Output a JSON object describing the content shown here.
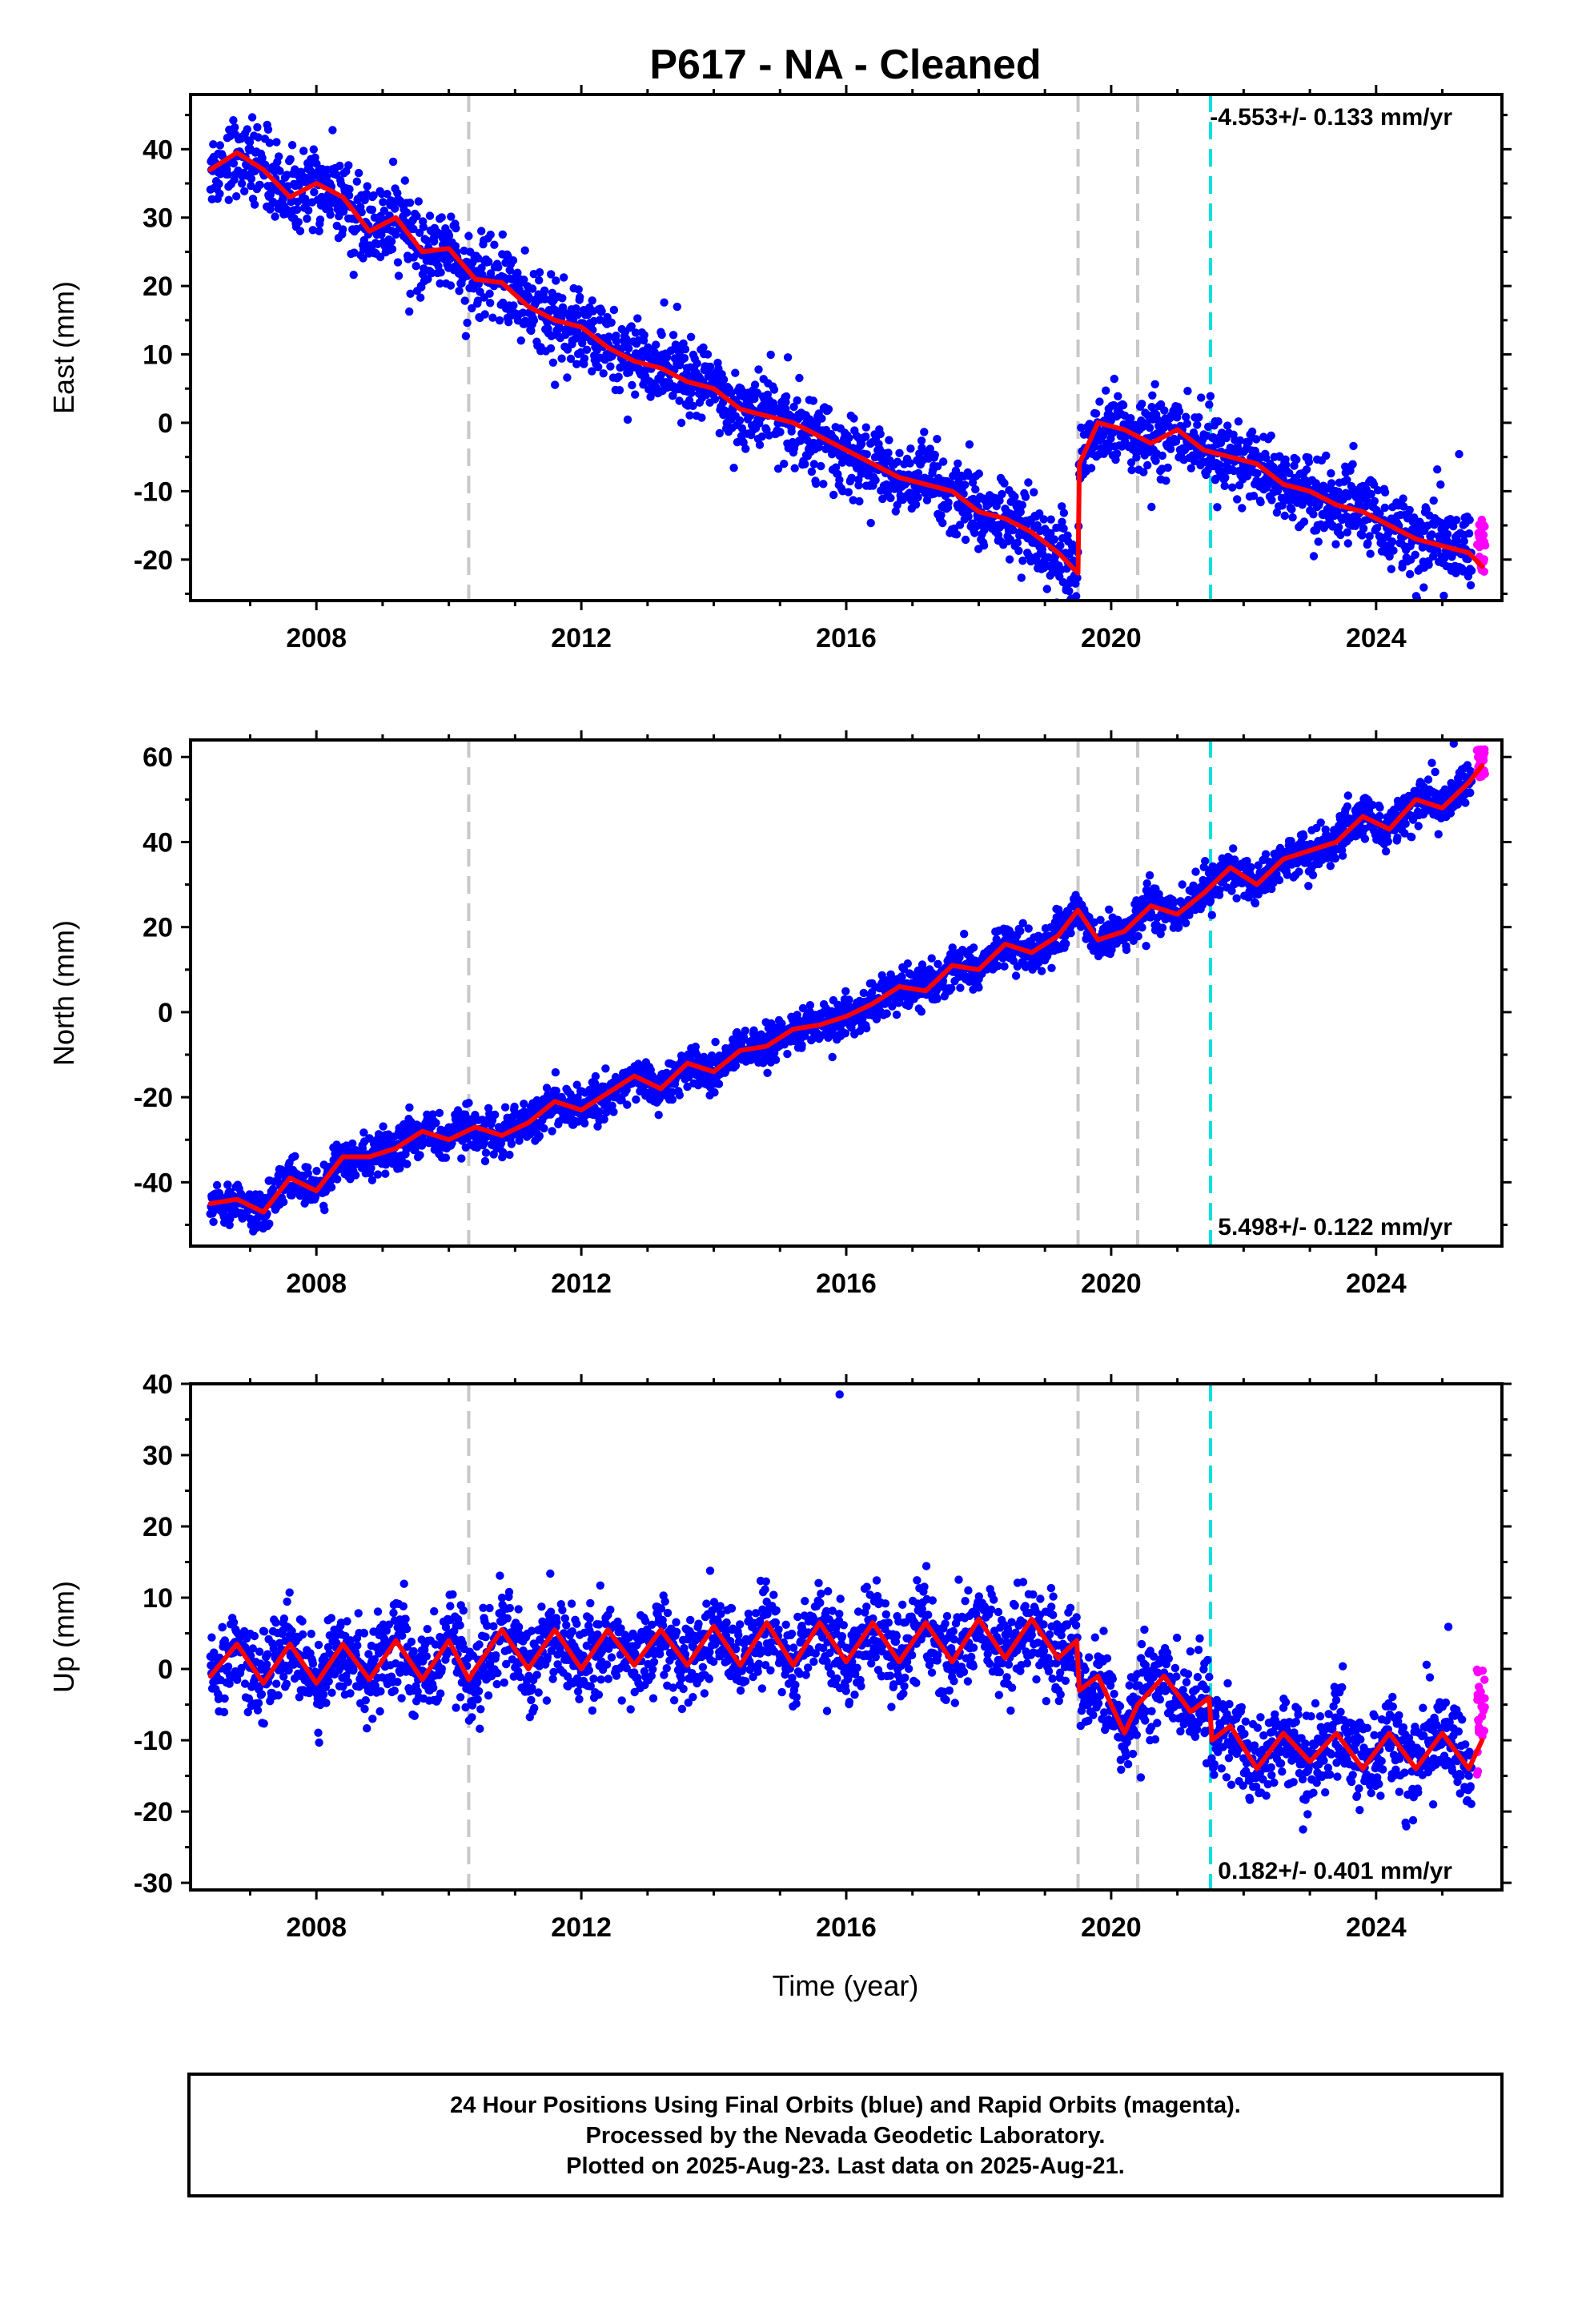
{
  "title": "P617  - NA - Cleaned",
  "xlabel": "Time (year)",
  "footer": {
    "line1": "24 Hour Positions Using Final Orbits (blue) and Rapid Orbits (magenta).",
    "line2": "Processed by the Nevada Geodetic Laboratory.",
    "line3": "Plotted on 2025-Aug-23. Last data on 2025-Aug-21."
  },
  "colors": {
    "final_orbit_points": "#0000ff",
    "rapid_orbit_points": "#ff00ff",
    "model_fit": "#ff0000",
    "event_line": "#c8c8c8",
    "eq_event_line": "#00e0e0"
  },
  "chart_data": [
    {
      "type": "scatter",
      "ylabel": "East (mm)",
      "xlim": [
        2006.1,
        2025.9
      ],
      "ylim": [
        -26,
        48
      ],
      "yticks": [
        -20,
        -10,
        0,
        10,
        20,
        30,
        40
      ],
      "xticks": [
        2008,
        2012,
        2016,
        2020,
        2024
      ],
      "grid": false,
      "annotation": "-4.553+/- 0.133 mm/yr",
      "annotation_position": "top-right",
      "event_lines": [
        2010.3,
        2019.5,
        2020.4
      ],
      "eq_event_lines": [
        2021.5
      ],
      "model_fit": {
        "x": [
          2006.4,
          2006.8,
          2007.2,
          2007.6,
          2008.0,
          2008.4,
          2008.8,
          2009.2,
          2009.6,
          2010.0,
          2010.4,
          2010.8,
          2011.2,
          2011.6,
          2012.0,
          2012.4,
          2012.8,
          2013.2,
          2013.6,
          2014.0,
          2014.4,
          2014.8,
          2015.2,
          2015.6,
          2016.0,
          2016.4,
          2016.8,
          2017.2,
          2017.6,
          2018.0,
          2018.4,
          2018.8,
          2019.2,
          2019.5,
          2019.52,
          2019.8,
          2020.2,
          2020.6,
          2021.0,
          2021.4,
          2021.8,
          2022.2,
          2022.6,
          2023.0,
          2023.4,
          2023.8,
          2024.2,
          2024.6,
          2025.0,
          2025.4,
          2025.6
        ],
        "values": [
          37,
          39.5,
          37,
          33,
          35,
          33,
          28,
          30,
          25,
          25.5,
          21,
          20.5,
          17,
          15,
          14,
          11,
          9,
          8,
          6,
          5,
          2,
          1,
          0,
          -2,
          -4,
          -6,
          -8,
          -9,
          -10,
          -13,
          -14,
          -16,
          -19,
          -22,
          -6,
          0,
          -1,
          -3,
          -1,
          -4,
          -5,
          -6,
          -9,
          -10,
          -12,
          -13,
          -15,
          -17,
          -18,
          -19,
          -21
        ]
      },
      "point_scatter_mm": 2.8,
      "rapid_orbit_x_range": [
        2025.45,
        2025.65
      ],
      "rapid_orbit_y_range": [
        -22,
        -14
      ]
    },
    {
      "type": "scatter",
      "ylabel": "North (mm)",
      "xlim": [
        2006.1,
        2025.9
      ],
      "ylim": [
        -55,
        64
      ],
      "yticks": [
        -40,
        -20,
        0,
        20,
        40,
        60
      ],
      "xticks": [
        2008,
        2012,
        2016,
        2020,
        2024
      ],
      "grid": false,
      "annotation": "5.498+/- 0.122 mm/yr",
      "annotation_position": "bottom-right",
      "event_lines": [
        2010.3,
        2019.5,
        2020.4
      ],
      "eq_event_lines": [
        2021.5
      ],
      "model_fit": {
        "x": [
          2006.4,
          2006.8,
          2007.2,
          2007.6,
          2008.0,
          2008.4,
          2008.8,
          2009.2,
          2009.6,
          2010.0,
          2010.4,
          2010.8,
          2011.2,
          2011.6,
          2012.0,
          2012.4,
          2012.8,
          2013.2,
          2013.6,
          2014.0,
          2014.4,
          2014.8,
          2015.2,
          2015.6,
          2016.0,
          2016.4,
          2016.8,
          2017.2,
          2017.6,
          2018.0,
          2018.4,
          2018.8,
          2019.2,
          2019.5,
          2019.8,
          2020.2,
          2020.6,
          2021.0,
          2021.4,
          2021.8,
          2022.2,
          2022.6,
          2023.0,
          2023.4,
          2023.8,
          2024.2,
          2024.6,
          2025.0,
          2025.4,
          2025.6
        ],
        "values": [
          -45,
          -44,
          -47,
          -39,
          -42,
          -34,
          -34,
          -32,
          -28,
          -30,
          -27,
          -29,
          -26,
          -21,
          -23,
          -19,
          -15,
          -18,
          -12,
          -14,
          -9,
          -8,
          -4,
          -3,
          -1,
          2,
          6,
          5,
          11,
          10,
          16,
          14,
          18,
          24,
          17,
          19,
          25,
          23,
          28,
          34,
          30,
          36,
          38,
          40,
          46,
          43,
          50,
          48,
          54,
          58
        ]
      },
      "point_scatter_mm": 2.5,
      "rapid_orbit_x_range": [
        2025.45,
        2025.65
      ],
      "rapid_orbit_y_range": [
        55,
        62
      ]
    },
    {
      "type": "scatter",
      "ylabel": "Up (mm)",
      "xlim": [
        2006.1,
        2025.9
      ],
      "ylim": [
        -31,
        40
      ],
      "yticks": [
        -30,
        -20,
        -10,
        0,
        10,
        20,
        30,
        40
      ],
      "xticks": [
        2008,
        2012,
        2016,
        2020,
        2024
      ],
      "grid": false,
      "annotation": "0.182+/- 0.401 mm/yr",
      "annotation_position": "bottom-right",
      "event_lines": [
        2010.3,
        2019.5,
        2020.4
      ],
      "eq_event_lines": [
        2021.5
      ],
      "model_fit": {
        "x": [
          2006.4,
          2006.8,
          2007.2,
          2007.6,
          2008.0,
          2008.4,
          2008.8,
          2009.2,
          2009.6,
          2010.0,
          2010.3,
          2010.4,
          2010.8,
          2011.2,
          2011.6,
          2012.0,
          2012.4,
          2012.8,
          2013.2,
          2013.6,
          2014.0,
          2014.4,
          2014.8,
          2015.2,
          2015.6,
          2016.0,
          2016.4,
          2016.8,
          2017.2,
          2017.6,
          2018.0,
          2018.4,
          2018.8,
          2019.2,
          2019.48,
          2019.52,
          2019.8,
          2020.2,
          2020.4,
          2020.8,
          2021.2,
          2021.48,
          2021.52,
          2021.8,
          2022.2,
          2022.6,
          2023.0,
          2023.4,
          2023.8,
          2024.2,
          2024.6,
          2025.0,
          2025.4,
          2025.6
        ],
        "values": [
          -1,
          3.5,
          -2,
          3.5,
          -2,
          3.5,
          -1.5,
          4,
          -1.5,
          4,
          -1.5,
          0,
          5.5,
          0,
          5.5,
          0,
          5.5,
          0.5,
          5.5,
          0.5,
          6,
          0.5,
          6.5,
          0.5,
          6.5,
          1,
          6.5,
          1,
          6.5,
          1,
          7,
          1.5,
          7,
          1.5,
          4,
          -3,
          -1,
          -9,
          -5,
          -1,
          -6,
          -4,
          -10,
          -8,
          -14,
          -9,
          -13,
          -9,
          -14,
          -9,
          -14,
          -9,
          -14,
          -10
        ]
      },
      "point_scatter_mm": 3.2,
      "rapid_orbit_x_range": [
        2025.45,
        2025.65
      ],
      "rapid_orbit_y_range": [
        -16,
        1
      ],
      "outliers": [
        {
          "x": 2015.9,
          "y": 38.5
        }
      ]
    }
  ]
}
